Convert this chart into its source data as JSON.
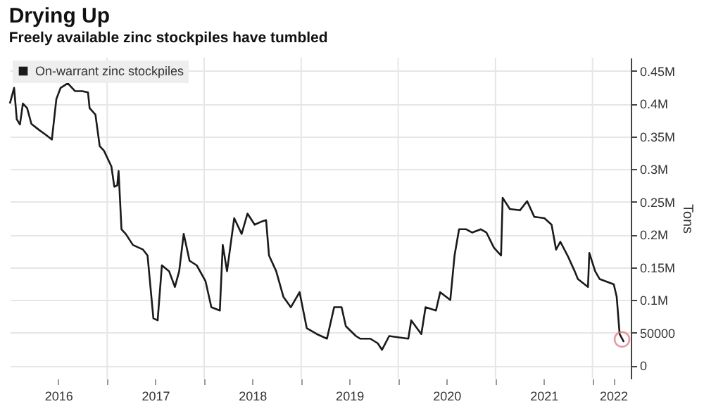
{
  "chart_data": {
    "type": "line",
    "title": "Drying Up",
    "subtitle": "Freely available zinc stockpiles have tumbled",
    "ylabel": "Tons",
    "xlim": [
      "2016-01-01",
      "2022-05-25"
    ],
    "ylim": [
      -20000,
      470000
    ],
    "xticks": [
      {
        "value": "2016-07-01",
        "label": "2016"
      },
      {
        "value": "2017-01-01",
        "label": null
      },
      {
        "value": "2017-07-01",
        "label": "2017"
      },
      {
        "value": "2018-01-01",
        "label": null
      },
      {
        "value": "2018-07-01",
        "label": "2018"
      },
      {
        "value": "2019-01-01",
        "label": null
      },
      {
        "value": "2019-07-01",
        "label": "2019"
      },
      {
        "value": "2020-01-01",
        "label": null
      },
      {
        "value": "2020-07-01",
        "label": "2020"
      },
      {
        "value": "2021-01-01",
        "label": null
      },
      {
        "value": "2021-07-01",
        "label": "2021"
      },
      {
        "value": "2022-01-01",
        "label": null
      },
      {
        "value": "2022-03-20",
        "label": "2022"
      }
    ],
    "yticks": [
      0,
      50000,
      {
        "value": 100000,
        "label": "0.1M"
      },
      {
        "value": 150000,
        "label": "0.15M"
      },
      {
        "value": 200000,
        "label": "0.2M"
      },
      {
        "value": 250000,
        "label": "0.25M"
      },
      {
        "value": 300000,
        "label": "0.3M"
      },
      {
        "value": 350000,
        "label": "0.35M"
      },
      {
        "value": 400000,
        "label": "0.4M"
      },
      {
        "value": 450000,
        "label": "0.45M"
      }
    ],
    "grid": true,
    "legend": "top left",
    "series": [
      {
        "name": "On-warrant zinc stockpiles",
        "color": "#1a1a1a",
        "x": [
          "2016-01-01",
          "2016-01-17",
          "2016-01-27",
          "2016-02-08",
          "2016-02-19",
          "2016-03-06",
          "2016-03-22",
          "2016-04-19",
          "2016-05-16",
          "2016-06-07",
          "2016-06-24",
          "2016-07-10",
          "2016-08-06",
          "2016-09-02",
          "2016-09-29",
          "2016-10-21",
          "2016-10-27",
          "2016-11-18",
          "2016-12-04",
          "2016-12-20",
          "2017-01-17",
          "2017-01-28",
          "2017-02-08",
          "2017-02-13",
          "2017-02-24",
          "2017-03-12",
          "2017-04-08",
          "2017-05-16",
          "2017-06-02",
          "2017-06-24",
          "2017-07-10",
          "2017-07-26",
          "2017-08-22",
          "2017-09-13",
          "2017-09-29",
          "2017-10-16",
          "2017-11-07",
          "2017-12-04",
          "2018-01-06",
          "2018-01-28",
          "2018-03-01",
          "2018-03-12",
          "2018-03-28",
          "2018-04-24",
          "2018-05-22",
          "2018-06-13",
          "2018-07-10",
          "2018-08-06",
          "2018-08-22",
          "2018-09-02",
          "2018-09-29",
          "2018-10-26",
          "2018-11-23",
          "2018-12-26",
          "2019-01-22",
          "2019-03-01",
          "2019-04-08",
          "2019-05-05",
          "2019-06-02",
          "2019-06-18",
          "2019-07-26",
          "2019-08-11",
          "2019-09-18",
          "2019-10-16",
          "2019-11-01",
          "2019-11-28",
          "2020-02-08",
          "2020-02-19",
          "2020-03-28",
          "2020-04-13",
          "2020-05-22",
          "2020-06-07",
          "2020-07-15",
          "2020-07-31",
          "2020-08-17",
          "2020-09-13",
          "2020-10-05",
          "2020-11-07",
          "2020-11-28",
          "2020-12-26",
          "2021-01-22",
          "2021-01-28",
          "2021-02-24",
          "2021-04-03",
          "2021-04-30",
          "2021-05-27",
          "2021-07-04",
          "2021-07-31",
          "2021-08-17",
          "2021-09-02",
          "2021-09-29",
          "2021-10-26",
          "2021-11-07",
          "2021-12-15",
          "2021-12-20",
          "2022-01-11",
          "2022-01-28",
          "2022-03-22",
          "2022-04-02",
          "2022-04-13",
          "2022-04-29"
        ],
        "values": [
          400000,
          424000,
          376000,
          368000,
          400000,
          393000,
          369000,
          360000,
          352000,
          345000,
          407000,
          424000,
          431000,
          419000,
          419000,
          417000,
          393000,
          383000,
          335000,
          328000,
          304000,
          273000,
          275000,
          297000,
          208000,
          201000,
          184000,
          177000,
          168000,
          72000,
          69000,
          153000,
          144000,
          120000,
          144000,
          201000,
          160000,
          153000,
          129000,
          89000,
          84000,
          184000,
          144000,
          225000,
          201000,
          232000,
          215000,
          220000,
          222000,
          168000,
          144000,
          105000,
          89000,
          112000,
          57000,
          48000,
          41000,
          89000,
          89000,
          60000,
          45000,
          41000,
          41000,
          34000,
          24000,
          45000,
          41000,
          69000,
          48000,
          89000,
          84000,
          112000,
          100000,
          168000,
          208000,
          208000,
          203000,
          208000,
          203000,
          180000,
          168000,
          256000,
          239000,
          237000,
          251000,
          227000,
          225000,
          215000,
          177000,
          189000,
          168000,
          144000,
          132000,
          120000,
          172000,
          144000,
          132000,
          124000,
          105000,
          48000,
          36000
        ]
      },
      {
        "type": "scatter",
        "color": "#e0707a",
        "marker": "circle",
        "x": [
          "2022-04-22"
        ],
        "values": [
          40000
        ]
      }
    ]
  }
}
